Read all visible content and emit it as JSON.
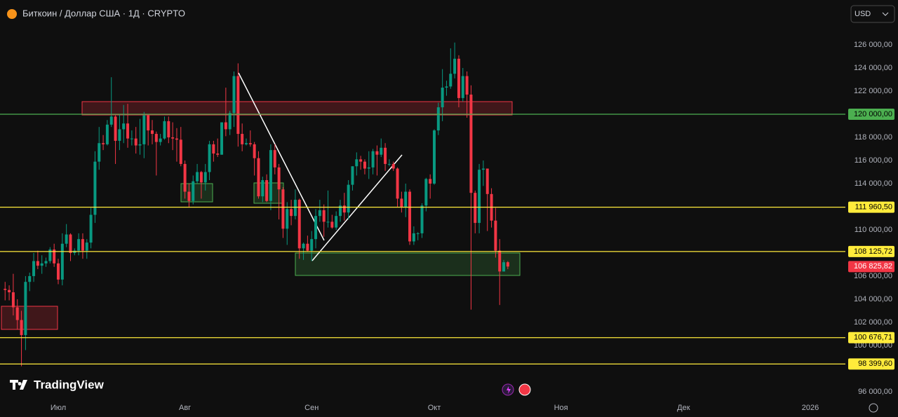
{
  "header": {
    "symbol": "Биткоин / Доллар США · 1Д · CRYPTO",
    "currency": "USD",
    "brand": "TradingView"
  },
  "chart_data": {
    "type": "candlestick",
    "categories": [
      null,
      null,
      null,
      null,
      null,
      null,
      null,
      null,
      null,
      null,
      null,
      null,
      null,
      "Июл",
      null,
      null,
      null,
      null,
      null,
      null,
      null,
      null,
      null,
      null,
      null,
      null,
      null,
      null,
      null,
      null,
      null,
      null,
      null,
      null,
      null,
      null,
      null,
      null,
      null,
      null,
      null,
      null,
      null,
      null,
      "Авг",
      null,
      null,
      null,
      null,
      null,
      null,
      null,
      null,
      null,
      null,
      null,
      null,
      null,
      null,
      null,
      null,
      null,
      null,
      null,
      null,
      null,
      null,
      null,
      null,
      null,
      null,
      null,
      null,
      null,
      null,
      "Сен",
      null,
      null,
      null,
      null,
      null,
      null,
      null,
      null,
      null,
      null,
      null,
      null,
      null,
      null,
      null,
      null,
      null,
      null,
      null,
      null,
      null,
      null,
      null,
      null,
      null,
      null,
      null,
      null,
      null,
      "Окт",
      null,
      null,
      null,
      null,
      null,
      null,
      null,
      null,
      null,
      null,
      null,
      null,
      null,
      null,
      null,
      null,
      null,
      null,
      null,
      null,
      null,
      null,
      null,
      null,
      null,
      null,
      null,
      null,
      null,
      null,
      "Ноя",
      null,
      null,
      null,
      null,
      null,
      null,
      null,
      null,
      null,
      null,
      null,
      null,
      null,
      null,
      null,
      null,
      null,
      null,
      null,
      null,
      null,
      null,
      null,
      null,
      null,
      null,
      null,
      null,
      null,
      "Дек",
      null,
      null,
      null,
      null,
      null,
      null,
      null,
      null,
      null,
      null,
      null,
      null,
      null,
      null,
      null,
      null,
      null,
      null,
      null,
      null,
      null,
      null,
      null,
      null,
      null,
      null,
      null,
      null,
      null,
      null,
      "2026"
    ],
    "values": [
      [
        104900,
        105500,
        103900,
        104800
      ],
      [
        104800,
        105200,
        103900,
        104600
      ],
      [
        104600,
        106200,
        102600,
        103300
      ],
      [
        103300,
        104000,
        101400,
        102200
      ],
      [
        102200,
        103000,
        98200,
        100900
      ],
      [
        100900,
        106000,
        99600,
        105500
      ],
      [
        105500,
        106300,
        104700,
        106000
      ],
      [
        106000,
        108000,
        105500,
        107300
      ],
      [
        107300,
        108200,
        106600,
        106900
      ],
      [
        106900,
        107800,
        106200,
        107100
      ],
      [
        107100,
        107600,
        106800,
        107300
      ],
      [
        107300,
        108500,
        107100,
        108300
      ],
      [
        108300,
        108800,
        106800,
        107100
      ],
      [
        107100,
        107500,
        105300,
        105700
      ],
      [
        105700,
        109700,
        105200,
        108800
      ],
      [
        108800,
        110500,
        108500,
        109600
      ],
      [
        109600,
        109700,
        107300,
        108000
      ],
      [
        108000,
        108400,
        107800,
        108200
      ],
      [
        108200,
        109700,
        107800,
        109200
      ],
      [
        109200,
        109700,
        107500,
        108200
      ],
      [
        108200,
        109200,
        107500,
        108900
      ],
      [
        108900,
        111900,
        108400,
        111300
      ],
      [
        111300,
        116800,
        110600,
        115900
      ],
      [
        115900,
        118900,
        115200,
        117500
      ],
      [
        117500,
        118200,
        116900,
        117400
      ],
      [
        117400,
        119500,
        117300,
        119100
      ],
      [
        119100,
        123200,
        118900,
        119800
      ],
      [
        119800,
        119900,
        115700,
        117700
      ],
      [
        117700,
        120000,
        116900,
        118700
      ],
      [
        118700,
        120800,
        117500,
        119200
      ],
      [
        119200,
        120900,
        117100,
        117900
      ],
      [
        117900,
        118600,
        117300,
        117900
      ],
      [
        117900,
        118900,
        116600,
        117300
      ],
      [
        117300,
        119600,
        116500,
        117400
      ],
      [
        117400,
        120200,
        116200,
        119900
      ],
      [
        119900,
        120000,
        117300,
        118600
      ],
      [
        118600,
        119500,
        117400,
        118300
      ],
      [
        118300,
        118500,
        114700,
        117600
      ],
      [
        117600,
        118300,
        117300,
        117900
      ],
      [
        117900,
        119800,
        117800,
        119400
      ],
      [
        119400,
        119800,
        117500,
        118000
      ],
      [
        118000,
        119300,
        116900,
        117900
      ],
      [
        117900,
        118800,
        115900,
        117800
      ],
      [
        117800,
        118900,
        115500,
        115700
      ],
      [
        115700,
        116000,
        112700,
        113300
      ],
      [
        113300,
        114000,
        112000,
        112500
      ],
      [
        112500,
        114700,
        112200,
        114200
      ],
      [
        114200,
        115700,
        114000,
        115000
      ],
      [
        115000,
        115100,
        112700,
        114100
      ],
      [
        114100,
        115700,
        113400,
        115000
      ],
      [
        115000,
        117700,
        114300,
        117400
      ],
      [
        117400,
        117700,
        115900,
        116600
      ],
      [
        116600,
        117900,
        116300,
        116500
      ],
      [
        116500,
        119300,
        116500,
        119300
      ],
      [
        119300,
        122300,
        118100,
        118700
      ],
      [
        118700,
        120300,
        118200,
        120100
      ],
      [
        120100,
        123700,
        118900,
        123300
      ],
      [
        123300,
        124400,
        117200,
        118300
      ],
      [
        118300,
        119200,
        116800,
        117400
      ],
      [
        117400,
        117900,
        117300,
        117500
      ],
      [
        117500,
        118600,
        117200,
        117400
      ],
      [
        117400,
        117600,
        114700,
        116200
      ],
      [
        116200,
        116800,
        112700,
        112900
      ],
      [
        112900,
        114600,
        112400,
        114300
      ],
      [
        114300,
        114800,
        112400,
        112500
      ],
      [
        112500,
        117400,
        111700,
        116900
      ],
      [
        116900,
        117400,
        114800,
        115400
      ],
      [
        115400,
        115700,
        110900,
        113500
      ],
      [
        113500,
        113700,
        109300,
        110100
      ],
      [
        110100,
        112400,
        108700,
        111800
      ],
      [
        111800,
        112600,
        110400,
        111200
      ],
      [
        111200,
        113500,
        110900,
        112600
      ],
      [
        112600,
        112700,
        107500,
        108400
      ],
      [
        108400,
        108900,
        107400,
        108800
      ],
      [
        108800,
        109500,
        108100,
        108200
      ],
      [
        108200,
        109900,
        107300,
        109200
      ],
      [
        109200,
        111800,
        108400,
        111200
      ],
      [
        111200,
        112600,
        110700,
        111700
      ],
      [
        111700,
        112200,
        109400,
        110700
      ],
      [
        110700,
        113400,
        110200,
        110700
      ],
      [
        110700,
        111300,
        110100,
        110200
      ],
      [
        110200,
        111600,
        110000,
        111200
      ],
      [
        111200,
        112600,
        110700,
        112100
      ],
      [
        112100,
        113200,
        110800,
        111500
      ],
      [
        111500,
        114300,
        110900,
        113900
      ],
      [
        113900,
        115500,
        113400,
        115500
      ],
      [
        115500,
        116700,
        114700,
        116100
      ],
      [
        116100,
        116400,
        115200,
        115900
      ],
      [
        115900,
        116100,
        114800,
        115300
      ],
      [
        115300,
        116800,
        114400,
        115400
      ],
      [
        115400,
        117000,
        114800,
        116800
      ],
      [
        116800,
        117300,
        114700,
        116500
      ],
      [
        116500,
        117900,
        116300,
        117100
      ],
      [
        117100,
        117500,
        115100,
        115700
      ],
      [
        115700,
        116100,
        115500,
        115700
      ],
      [
        115700,
        115900,
        115100,
        115300
      ],
      [
        115300,
        115400,
        112000,
        112700
      ],
      [
        112700,
        113300,
        111500,
        112000
      ],
      [
        112000,
        114000,
        111100,
        113300
      ],
      [
        113300,
        113500,
        108700,
        109000
      ],
      [
        109000,
        110300,
        108700,
        109700
      ],
      [
        109700,
        109800,
        109100,
        109700
      ],
      [
        109700,
        112300,
        109300,
        112100
      ],
      [
        112100,
        114500,
        111600,
        114400
      ],
      [
        114400,
        114800,
        112700,
        114000
      ],
      [
        114000,
        118700,
        113900,
        118600
      ],
      [
        118600,
        121000,
        118200,
        120600
      ],
      [
        120600,
        123900,
        119400,
        122300
      ],
      [
        122300,
        122900,
        121600,
        122400
      ],
      [
        122400,
        125700,
        122200,
        123500
      ],
      [
        123500,
        126200,
        123100,
        124800
      ],
      [
        124800,
        125100,
        120600,
        121400
      ],
      [
        121400,
        124000,
        121100,
        123300
      ],
      [
        123300,
        123700,
        119700,
        121700
      ],
      [
        121700,
        122500,
        103100,
        113200
      ],
      [
        113200,
        113400,
        109700,
        110600
      ],
      [
        110600,
        115700,
        109700,
        115200
      ],
      [
        115200,
        116000,
        113800,
        115300
      ],
      [
        115300,
        115300,
        109900,
        113100
      ],
      [
        113100,
        113600,
        110200,
        110800
      ],
      [
        110800,
        111900,
        107600,
        108200
      ],
      [
        108200,
        109200,
        103500,
        106400
      ],
      [
        106400,
        107400,
        106400,
        107200
      ],
      [
        107200,
        107300,
        106600,
        106825.82
      ],
      null,
      null,
      null,
      null,
      null,
      null,
      null,
      null,
      null,
      null,
      null,
      null,
      null,
      null,
      null,
      null,
      null,
      null,
      null,
      null,
      null,
      null,
      null,
      null,
      null,
      null,
      null,
      null,
      null,
      null,
      null,
      null,
      null,
      null,
      null,
      null,
      null,
      null,
      null,
      null,
      null,
      null,
      null,
      null,
      null,
      null,
      null,
      null,
      null,
      null,
      null,
      null,
      null,
      null,
      null,
      null,
      null,
      null,
      null,
      null,
      null,
      null,
      null,
      null,
      null,
      null,
      null,
      null,
      null,
      null,
      null,
      null,
      null,
      null
    ],
    "up_color": "#089981",
    "down_color": "#f23645",
    "ylim": [
      95450,
      129880
    ],
    "yticks": [
      {
        "value": 126000,
        "label": "126 000,00"
      },
      {
        "value": 124000,
        "label": "124 000,00"
      },
      {
        "value": 122000,
        "label": "122 000,00"
      },
      {
        "value": 118000,
        "label": "118 000,00"
      },
      {
        "value": 116000,
        "label": "116 000,00"
      },
      {
        "value": 114000,
        "label": "114 000,00"
      },
      {
        "value": 110000,
        "label": "110 000,00"
      },
      {
        "value": 106000,
        "label": "106 000,00"
      },
      {
        "value": 104000,
        "label": "104 000,00"
      },
      {
        "value": 102000,
        "label": "102 000,00"
      },
      {
        "value": 100000,
        "label": "100 000,00"
      },
      {
        "value": 96000,
        "label": "96 000,00"
      }
    ],
    "price_lines": [
      {
        "value": 120000,
        "label": "120 000,00",
        "color": "#4caf50"
      },
      {
        "value": 111960.5,
        "label": "111 960,50",
        "color": "#ffeb3b"
      },
      {
        "value": 108125.72,
        "label": "108 125,72",
        "color": "#ffeb3b"
      },
      {
        "value": 100676.71,
        "label": "100 676,71",
        "color": "#ffeb3b"
      },
      {
        "value": 98399.6,
        "label": "98 399,60",
        "color": "#ffeb3b"
      }
    ],
    "last_price": {
      "value": 106825.82,
      "label": "106 825,82",
      "color": "#f23645"
    }
  }
}
